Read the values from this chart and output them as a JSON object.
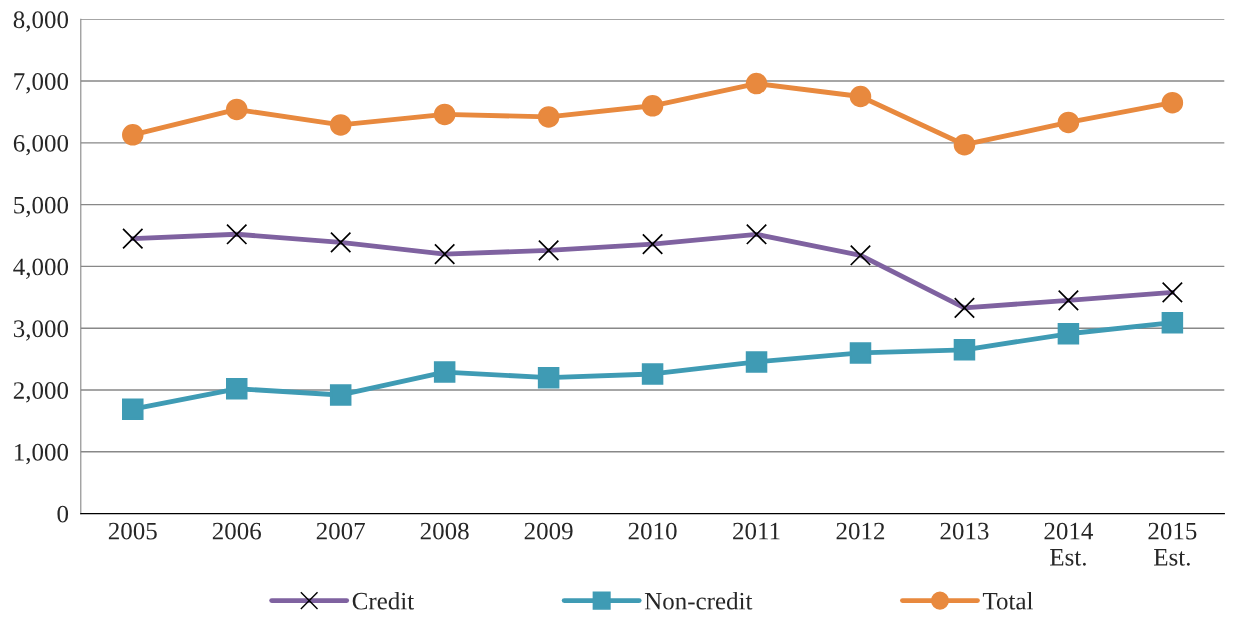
{
  "chart_data": {
    "type": "line",
    "categories": [
      "2005",
      "2006",
      "2007",
      "2008",
      "2009",
      "2010",
      "2011",
      "2012",
      "2013",
      "2014\nEst.",
      "2015\nEst."
    ],
    "series": [
      {
        "name": "Credit",
        "color": "#7f62a0",
        "marker": "cross",
        "values": [
          4450,
          4520,
          4390,
          4200,
          4260,
          4360,
          4520,
          4180,
          3330,
          3450,
          3580
        ]
      },
      {
        "name": "Non-credit",
        "color": "#3f9bb4",
        "marker": "square",
        "values": [
          1690,
          2020,
          1920,
          2290,
          2200,
          2260,
          2455,
          2600,
          2650,
          2910,
          3090
        ]
      },
      {
        "name": "Total",
        "color": "#e8893e",
        "marker": "circle",
        "values": [
          6130,
          6540,
          6290,
          6460,
          6420,
          6600,
          6960,
          6750,
          5970,
          6330,
          6650
        ]
      }
    ],
    "ylim": [
      0,
      8000
    ],
    "yticks": [
      {
        "value": 0,
        "label": "0"
      },
      {
        "value": 1000,
        "label": "1,000"
      },
      {
        "value": 2000,
        "label": "2,000"
      },
      {
        "value": 3000,
        "label": "3,000"
      },
      {
        "value": 4000,
        "label": "4,000"
      },
      {
        "value": 5000,
        "label": "5,000"
      },
      {
        "value": 6000,
        "label": "6,000"
      },
      {
        "value": 7000,
        "label": "7,000"
      },
      {
        "value": 8000,
        "label": "8,000"
      }
    ],
    "grid": "y",
    "legend": "bottom",
    "line_style": "solid"
  }
}
